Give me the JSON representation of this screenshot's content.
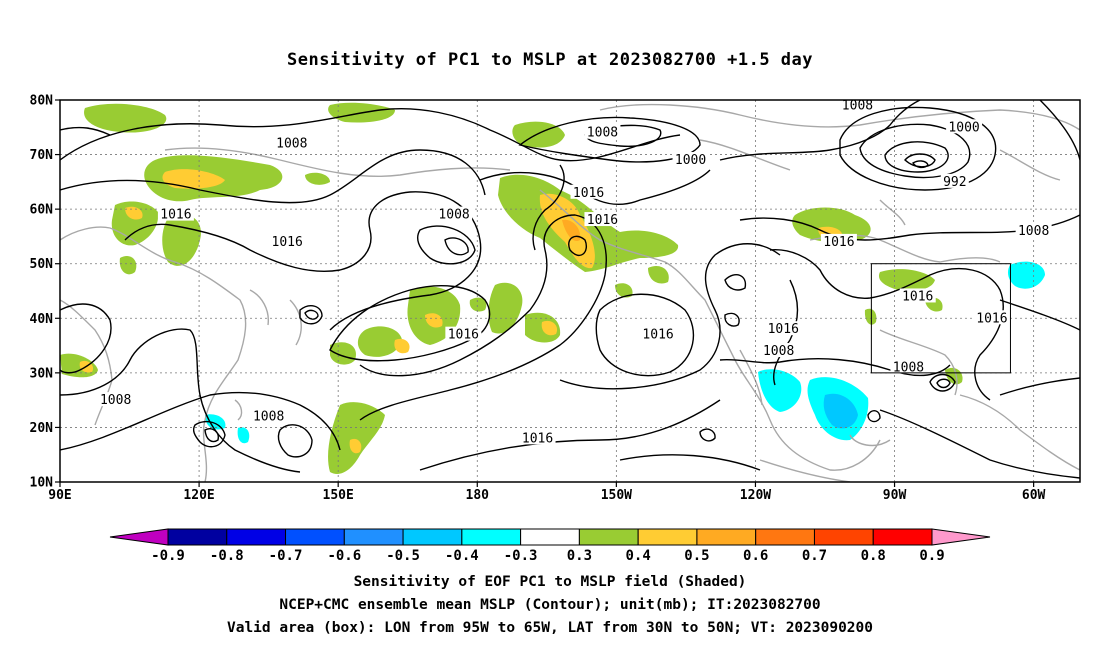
{
  "title": "Sensitivity of PC1 to MSLP at 2023082700 +1.5 day",
  "map": {
    "lon_range": [
      90,
      310
    ],
    "lat_range": [
      10,
      80
    ],
    "lon_ticks": [
      {
        "lon": 90,
        "label": "90E"
      },
      {
        "lon": 120,
        "label": "120E"
      },
      {
        "lon": 150,
        "label": "150E"
      },
      {
        "lon": 180,
        "label": "180"
      },
      {
        "lon": 210,
        "label": "150W"
      },
      {
        "lon": 240,
        "label": "120W"
      },
      {
        "lon": 270,
        "label": "90W"
      },
      {
        "lon": 300,
        "label": "60W"
      }
    ],
    "lat_ticks": [
      {
        "lat": 10,
        "label": "10N"
      },
      {
        "lat": 20,
        "label": "20N"
      },
      {
        "lat": 30,
        "label": "30N"
      },
      {
        "lat": 40,
        "label": "40N"
      },
      {
        "lat": 50,
        "label": "50N"
      },
      {
        "lat": 60,
        "label": "60N"
      },
      {
        "lat": 70,
        "label": "70N"
      },
      {
        "lat": 80,
        "label": "80N"
      }
    ],
    "valid_box": {
      "lon_min": 265,
      "lon_max": 295,
      "lat_min": 30,
      "lat_max": 50
    },
    "contour_labels": [
      {
        "lon": 140,
        "lat": 72,
        "text": "1008"
      },
      {
        "lon": 115,
        "lat": 59,
        "text": "1016"
      },
      {
        "lon": 139,
        "lat": 54,
        "text": "1016"
      },
      {
        "lon": 102,
        "lat": 25,
        "text": "1008"
      },
      {
        "lon": 135,
        "lat": 22,
        "text": "1008"
      },
      {
        "lon": 175,
        "lat": 59,
        "text": "1008"
      },
      {
        "lon": 177,
        "lat": 37,
        "text": "1016"
      },
      {
        "lon": 193,
        "lat": 18,
        "text": "1016"
      },
      {
        "lon": 204,
        "lat": 63,
        "text": "1016"
      },
      {
        "lon": 207,
        "lat": 58,
        "text": "1016"
      },
      {
        "lon": 207,
        "lat": 74,
        "text": "1008"
      },
      {
        "lon": 226,
        "lat": 69,
        "text": "1000"
      },
      {
        "lon": 219,
        "lat": 37,
        "text": "1016"
      },
      {
        "lon": 262,
        "lat": 79,
        "text": "1008"
      },
      {
        "lon": 285,
        "lat": 75,
        "text": "1000"
      },
      {
        "lon": 283,
        "lat": 65,
        "text": "992"
      },
      {
        "lon": 300,
        "lat": 56,
        "text": "1008"
      },
      {
        "lon": 258,
        "lat": 54,
        "text": "1016"
      },
      {
        "lon": 246,
        "lat": 38,
        "text": "1016"
      },
      {
        "lon": 245,
        "lat": 34,
        "text": "1008"
      },
      {
        "lon": 275,
        "lat": 44,
        "text": "1016"
      },
      {
        "lon": 291,
        "lat": 40,
        "text": "1016"
      },
      {
        "lon": 273,
        "lat": 31,
        "text": "1008"
      }
    ]
  },
  "colorbar": {
    "labels": [
      "-0.9",
      "-0.8",
      "-0.7",
      "-0.6",
      "-0.5",
      "-0.4",
      "-0.3",
      "0.3",
      "0.4",
      "0.5",
      "0.6",
      "0.7",
      "0.8",
      "0.9"
    ],
    "colors": [
      "#c000c0",
      "#0000a0",
      "#0000e6",
      "#0050ff",
      "#2090ff",
      "#00c8ff",
      "#00ffff",
      "#ffffff",
      "#99cc33",
      "#ffcc33",
      "#ffaa22",
      "#ff7711",
      "#ff4400",
      "#ff0000",
      "#ff99cc"
    ]
  },
  "captions": {
    "line1": "Sensitivity of EOF PC1 to MSLP field (Shaded)",
    "line2": "NCEP+CMC ensemble mean MSLP (Contour); unit(mb); IT:2023082700",
    "line3": "Valid area (box): LON from 95W to 65W, LAT from 30N to 50N; VT: 2023090200"
  }
}
